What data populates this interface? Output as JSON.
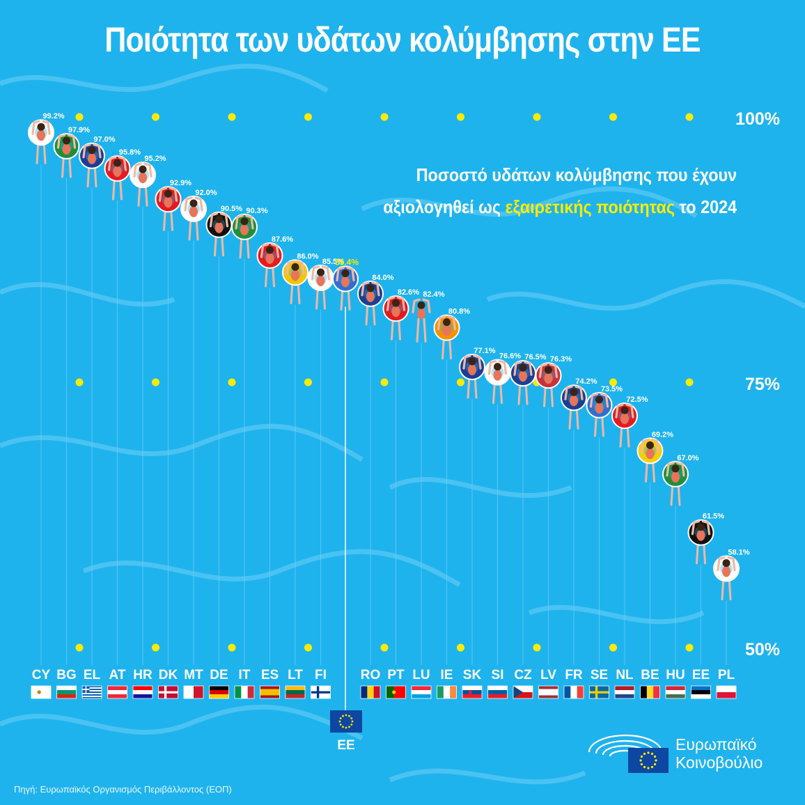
{
  "title": "Ποιότητα των υδάτων κολύμβησης στην ΕΕ",
  "subtitle_line1": "Ποσοστό υδάτων κολύμβησης που έχουν",
  "subtitle_line2_pre": "αξιολογηθεί ως ",
  "subtitle_line2_highlight": "εξαιρετικής ποιότητας",
  "subtitle_line2_post": " το 2024",
  "source": "Πηγή: Ευρωπαϊκός Οργανισμός Περιβάλλοντος (ΕΟΠ)",
  "logo": {
    "line1": "Ευρωπαϊκό",
    "line2": "Κοινοβούλιο"
  },
  "eu_flag_label": "ΕΕ",
  "colors": {
    "background": "#1fb3ee",
    "highlight": "#ffeb00",
    "gridline": "#6fd0f5",
    "dot": "#ffeb00"
  },
  "chart_data": {
    "type": "scatter",
    "ylim": [
      50,
      100
    ],
    "ytick_labels": [
      {
        "value": 100,
        "label": "100%"
      },
      {
        "value": 75,
        "label": "75%"
      },
      {
        "value": 50,
        "label": "50%"
      }
    ],
    "eu_average": {
      "code": "ΕΕ",
      "value": 85.4,
      "label": "85.4%",
      "color": "#ffeb00"
    },
    "points": [
      {
        "code": "CY",
        "value": 99.2,
        "label": "99.2%",
        "ring": "#ffffff"
      },
      {
        "code": "BG",
        "value": 97.9,
        "label": "97.9%",
        "ring": "#1f8f3a"
      },
      {
        "code": "EL",
        "value": 97.0,
        "label": "97.0%",
        "ring": "#1c3f94"
      },
      {
        "code": "AT",
        "value": 95.8,
        "label": "95.8%",
        "ring": "#e31b23"
      },
      {
        "code": "HR",
        "value": 95.2,
        "label": "95.2%",
        "ring": "#ffffff"
      },
      {
        "code": "DK",
        "value": 92.9,
        "label": "92.9%",
        "ring": "#e31b23"
      },
      {
        "code": "MT",
        "value": 92.0,
        "label": "92.0%",
        "ring": "#ffffff"
      },
      {
        "code": "DE",
        "value": 90.5,
        "label": "90.5%",
        "ring": "#111111"
      },
      {
        "code": "IT",
        "value": 90.3,
        "label": "90.3%",
        "ring": "#1f8f3a"
      },
      {
        "code": "ES",
        "value": 87.6,
        "label": "87.6%",
        "ring": "#e31b23"
      },
      {
        "code": "LT",
        "value": 86.0,
        "label": "86.0%",
        "ring": "#f5c400"
      },
      {
        "code": "FI",
        "value": 85.5,
        "label": "85.5%",
        "ring": "#ffffff"
      },
      {
        "code": "RO",
        "value": 84.0,
        "label": "84.0%",
        "ring": "#1c3f94"
      },
      {
        "code": "PT",
        "value": 82.6,
        "label": "82.6%",
        "ring": "#e31b23"
      },
      {
        "code": "LU",
        "value": 82.4,
        "label": "82.4%",
        "ring": ""
      },
      {
        "code": "IE",
        "value": 80.8,
        "label": "80.8%",
        "ring": "#f39200"
      },
      {
        "code": "SK",
        "value": 77.1,
        "label": "77.1%",
        "ring": "#1c3f94"
      },
      {
        "code": "SI",
        "value": 76.6,
        "label": "76.6%",
        "ring": "#ffffff"
      },
      {
        "code": "CZ",
        "value": 76.5,
        "label": "76.5%",
        "ring": "#1c3f94"
      },
      {
        "code": "LV",
        "value": 76.3,
        "label": "76.3%",
        "ring": "#c8323c"
      },
      {
        "code": "FR",
        "value": 74.2,
        "label": "74.2%",
        "ring": "#1c3f94"
      },
      {
        "code": "SE",
        "value": 73.5,
        "label": "73.5%",
        "ring": "#2f6fd0"
      },
      {
        "code": "NL",
        "value": 72.5,
        "label": "72.5%",
        "ring": "#e31b23"
      },
      {
        "code": "BE",
        "value": 69.2,
        "label": "69.2%",
        "ring": "#f5d000"
      },
      {
        "code": "HU",
        "value": 67.0,
        "label": "67.0%",
        "ring": "#1f8f3a"
      },
      {
        "code": "EE",
        "value": 61.5,
        "label": "61.5%",
        "ring": "#111111"
      },
      {
        "code": "PL",
        "value": 58.1,
        "label": "58.1%",
        "ring": "#ffffff"
      }
    ]
  }
}
